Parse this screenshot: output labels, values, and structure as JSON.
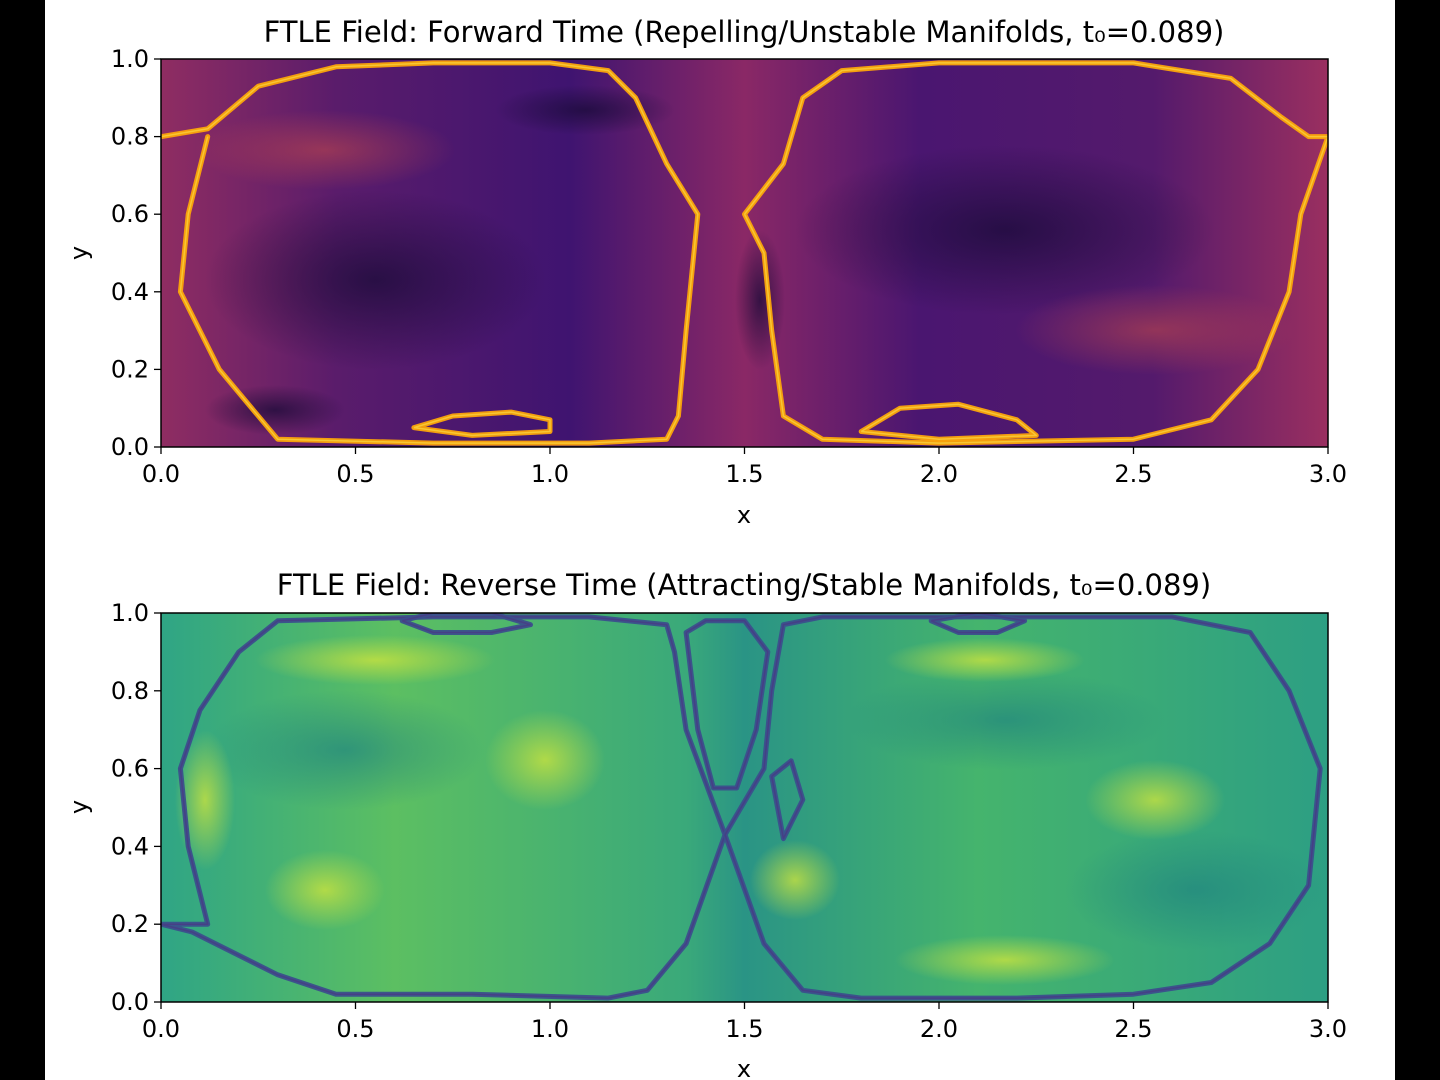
{
  "chart_data": [
    {
      "type": "heatmap",
      "title": "FTLE Field: Forward Time (Repelling/Unstable Manifolds, t₀=0.089)",
      "xlabel": "x",
      "ylabel": "y",
      "xlim": [
        0.0,
        3.0
      ],
      "ylim": [
        0.0,
        1.0
      ],
      "xticks": [
        0.0,
        0.5,
        1.0,
        1.5,
        2.0,
        2.5,
        3.0
      ],
      "xtick_labels": [
        "0.0",
        "0.5",
        "1.0",
        "1.5",
        "2.0",
        "2.5",
        "3.0"
      ],
      "yticks": [
        0.0,
        0.2,
        0.4,
        0.6,
        0.8,
        1.0
      ],
      "ytick_labels": [
        "0.0",
        "0.2",
        "0.4",
        "0.6",
        "0.8",
        "1.0"
      ],
      "colormap": "inferno",
      "colors": {
        "low": "#1c0c3d",
        "mid": "#8a2866",
        "high": "#fca50a"
      },
      "ridge_lines": [
        {
          "name": "left-cell-boundary",
          "points": [
            [
              0.0,
              0.8
            ],
            [
              0.12,
              0.82
            ],
            [
              0.25,
              0.93
            ],
            [
              0.45,
              0.98
            ],
            [
              0.7,
              0.99
            ],
            [
              1.0,
              0.99
            ],
            [
              1.15,
              0.97
            ],
            [
              1.22,
              0.9
            ],
            [
              1.3,
              0.73
            ],
            [
              1.38,
              0.6
            ],
            [
              1.35,
              0.3
            ],
            [
              1.33,
              0.08
            ],
            [
              1.3,
              0.02
            ],
            [
              1.1,
              0.01
            ],
            [
              0.7,
              0.01
            ],
            [
              0.3,
              0.02
            ],
            [
              0.15,
              0.2
            ],
            [
              0.05,
              0.4
            ],
            [
              0.07,
              0.6
            ],
            [
              0.12,
              0.8
            ]
          ]
        },
        {
          "name": "right-cell-boundary",
          "points": [
            [
              1.5,
              0.6
            ],
            [
              1.6,
              0.73
            ],
            [
              1.65,
              0.9
            ],
            [
              1.75,
              0.97
            ],
            [
              2.0,
              0.99
            ],
            [
              2.5,
              0.99
            ],
            [
              2.75,
              0.95
            ],
            [
              2.88,
              0.85
            ],
            [
              2.95,
              0.8
            ],
            [
              3.0,
              0.8
            ],
            [
              2.93,
              0.6
            ],
            [
              2.9,
              0.4
            ],
            [
              2.82,
              0.2
            ],
            [
              2.7,
              0.07
            ],
            [
              2.5,
              0.02
            ],
            [
              2.0,
              0.01
            ],
            [
              1.7,
              0.02
            ],
            [
              1.6,
              0.08
            ],
            [
              1.57,
              0.3
            ],
            [
              1.55,
              0.5
            ],
            [
              1.5,
              0.6
            ]
          ]
        },
        {
          "name": "bottom-lobe-left",
          "points": [
            [
              0.65,
              0.05
            ],
            [
              0.75,
              0.08
            ],
            [
              0.9,
              0.09
            ],
            [
              1.0,
              0.07
            ],
            [
              1.0,
              0.04
            ],
            [
              0.8,
              0.03
            ],
            [
              0.65,
              0.05
            ]
          ]
        },
        {
          "name": "bottom-lobe-right",
          "points": [
            [
              1.8,
              0.04
            ],
            [
              1.9,
              0.1
            ],
            [
              2.05,
              0.11
            ],
            [
              2.2,
              0.07
            ],
            [
              2.25,
              0.03
            ],
            [
              2.0,
              0.02
            ],
            [
              1.8,
              0.04
            ]
          ]
        }
      ]
    },
    {
      "type": "heatmap",
      "title": "FTLE Field: Reverse Time (Attracting/Stable Manifolds, t₀=0.089)",
      "xlabel": "x",
      "ylabel": "y",
      "xlim": [
        0.0,
        3.0
      ],
      "ylim": [
        0.0,
        1.0
      ],
      "xticks": [
        0.0,
        0.5,
        1.0,
        1.5,
        2.0,
        2.5,
        3.0
      ],
      "xtick_labels": [
        "0.0",
        "0.5",
        "1.0",
        "1.5",
        "2.0",
        "2.5",
        "3.0"
      ],
      "yticks": [
        0.0,
        0.2,
        0.4,
        0.6,
        0.8,
        1.0
      ],
      "ytick_labels": [
        "0.0",
        "0.2",
        "0.4",
        "0.6",
        "0.8",
        "1.0"
      ],
      "colormap": "viridis",
      "colors": {
        "low": "#3b4f8c",
        "mid": "#2ea37f",
        "high": "#cde540"
      },
      "ridge_lines": [
        {
          "name": "left-cell-boundary",
          "points": [
            [
              0.0,
              0.2
            ],
            [
              0.08,
              0.18
            ],
            [
              0.3,
              0.07
            ],
            [
              0.45,
              0.02
            ],
            [
              0.8,
              0.02
            ],
            [
              1.15,
              0.01
            ],
            [
              1.25,
              0.03
            ],
            [
              1.35,
              0.15
            ],
            [
              1.45,
              0.43
            ],
            [
              1.35,
              0.7
            ],
            [
              1.32,
              0.9
            ],
            [
              1.3,
              0.97
            ],
            [
              1.1,
              0.99
            ],
            [
              0.7,
              0.99
            ],
            [
              0.3,
              0.98
            ],
            [
              0.2,
              0.9
            ],
            [
              0.1,
              0.75
            ],
            [
              0.05,
              0.6
            ],
            [
              0.07,
              0.4
            ],
            [
              0.12,
              0.2
            ],
            [
              0.0,
              0.2
            ]
          ]
        },
        {
          "name": "right-cell-boundary",
          "points": [
            [
              1.45,
              0.43
            ],
            [
              1.55,
              0.15
            ],
            [
              1.65,
              0.03
            ],
            [
              1.8,
              0.01
            ],
            [
              2.2,
              0.01
            ],
            [
              2.5,
              0.02
            ],
            [
              2.7,
              0.05
            ],
            [
              2.85,
              0.15
            ],
            [
              2.95,
              0.3
            ],
            [
              2.98,
              0.6
            ],
            [
              2.9,
              0.8
            ],
            [
              2.8,
              0.95
            ],
            [
              2.6,
              0.99
            ],
            [
              2.0,
              0.99
            ],
            [
              1.7,
              0.99
            ],
            [
              1.6,
              0.97
            ],
            [
              1.57,
              0.8
            ],
            [
              1.55,
              0.6
            ],
            [
              1.45,
              0.43
            ]
          ]
        },
        {
          "name": "top-lobe-left",
          "points": [
            [
              0.62,
              0.98
            ],
            [
              0.7,
              0.95
            ],
            [
              0.85,
              0.95
            ],
            [
              0.95,
              0.97
            ],
            [
              0.85,
              1.0
            ],
            [
              0.7,
              1.0
            ],
            [
              0.62,
              0.98
            ]
          ]
        },
        {
          "name": "top-lobe-right",
          "points": [
            [
              1.98,
              0.98
            ],
            [
              2.05,
              0.95
            ],
            [
              2.15,
              0.95
            ],
            [
              2.22,
              0.98
            ],
            [
              2.1,
              1.0
            ],
            [
              1.98,
              0.98
            ]
          ]
        },
        {
          "name": "central-plume",
          "points": [
            [
              1.35,
              0.95
            ],
            [
              1.4,
              0.98
            ],
            [
              1.5,
              0.98
            ],
            [
              1.56,
              0.9
            ],
            [
              1.53,
              0.7
            ],
            [
              1.48,
              0.55
            ],
            [
              1.42,
              0.55
            ],
            [
              1.38,
              0.7
            ],
            [
              1.35,
              0.95
            ]
          ]
        },
        {
          "name": "plume-filament",
          "points": [
            [
              1.57,
              0.58
            ],
            [
              1.62,
              0.62
            ],
            [
              1.65,
              0.52
            ],
            [
              1.6,
              0.42
            ],
            [
              1.57,
              0.58
            ]
          ]
        }
      ]
    }
  ]
}
